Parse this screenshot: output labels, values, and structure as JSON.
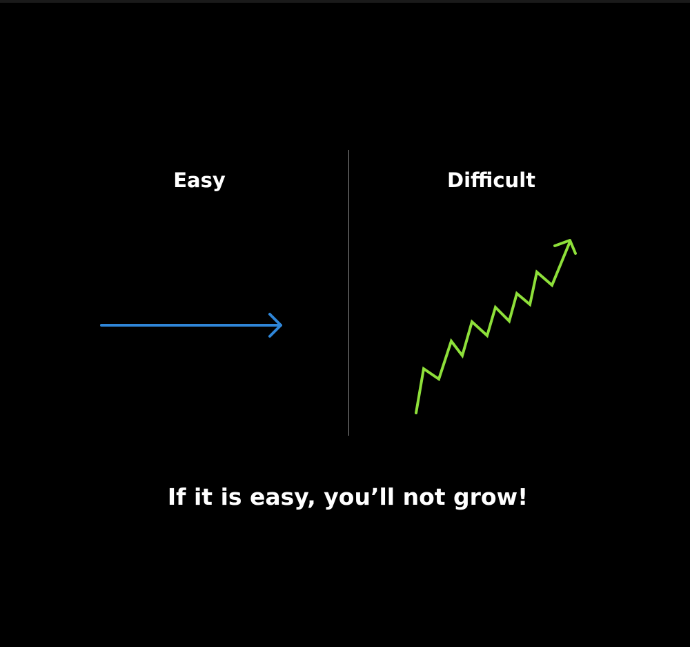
{
  "left_panel": {
    "label": "Easy",
    "icon": "straight-arrow-icon",
    "color": "#2f86d8"
  },
  "right_panel": {
    "label": "Difficult",
    "icon": "zigzag-up-arrow-icon",
    "color": "#8ee03a"
  },
  "caption": "If it is easy, you’ll not grow!"
}
